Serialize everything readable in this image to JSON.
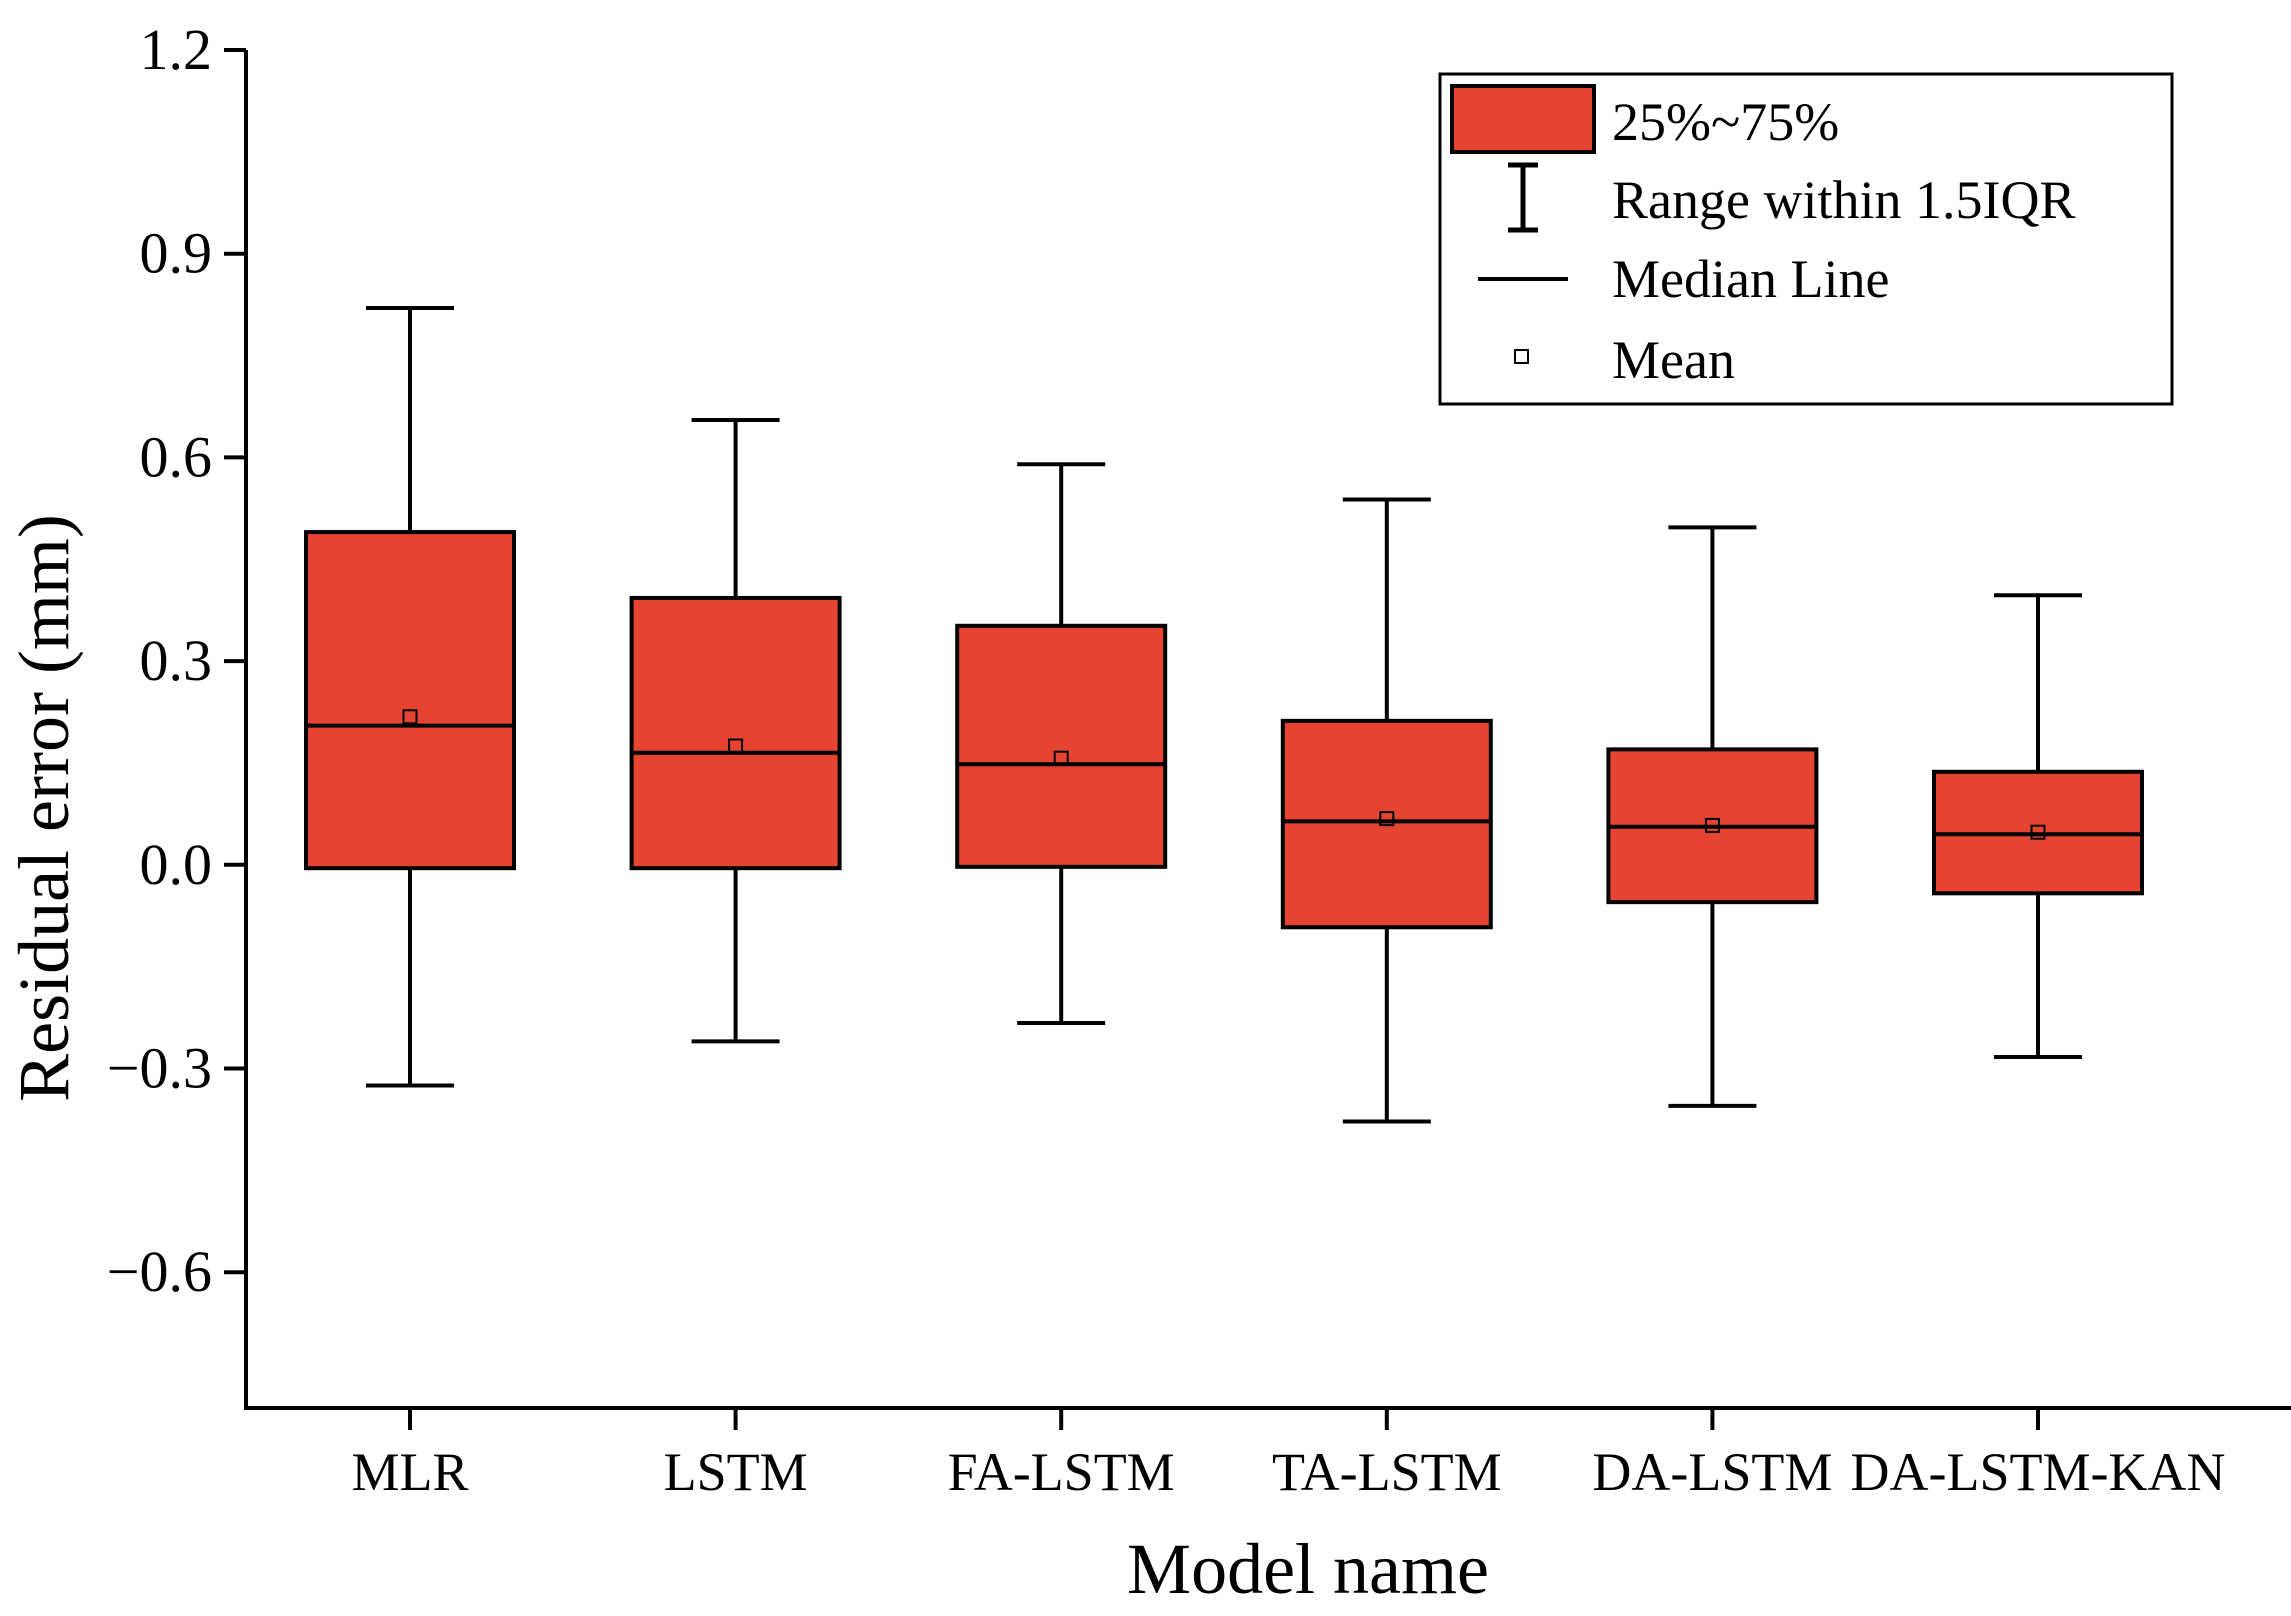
{
  "chart_data": {
    "type": "box",
    "xlabel": "Model name",
    "ylabel": "Residual error (mm)",
    "ylim": [
      -0.8,
      1.2
    ],
    "yticks": [
      -0.6,
      -0.3,
      0.0,
      0.3,
      0.6,
      0.9,
      1.2
    ],
    "ytick_labels": [
      "−0.6",
      "−0.3",
      "0.0",
      "0.3",
      "0.6",
      "0.9",
      "1.2"
    ],
    "grid": false,
    "legend_position": "top-right",
    "legend": [
      "25%~75%",
      "Range within 1.5IQR",
      "Median Line",
      "Mean"
    ],
    "box_color": "#e54530",
    "categories": [
      "MLR",
      "LSTM",
      "FA-LSTM",
      "TA-LSTM",
      "DA-LSTM",
      "DA-LSTM-KAN"
    ],
    "series": [
      {
        "name": "MLR",
        "whisker_low": -0.325,
        "q1": -0.005,
        "median": 0.205,
        "q3": 0.49,
        "whisker_high": 0.82,
        "mean": 0.218
      },
      {
        "name": "LSTM",
        "whisker_low": -0.26,
        "q1": -0.005,
        "median": 0.165,
        "q3": 0.393,
        "whisker_high": 0.655,
        "mean": 0.175
      },
      {
        "name": "FA-LSTM",
        "whisker_low": -0.233,
        "q1": -0.003,
        "median": 0.148,
        "q3": 0.352,
        "whisker_high": 0.59,
        "mean": 0.157
      },
      {
        "name": "TA-LSTM",
        "whisker_low": -0.378,
        "q1": -0.092,
        "median": 0.064,
        "q3": 0.212,
        "whisker_high": 0.538,
        "mean": 0.068
      },
      {
        "name": "DA-LSTM",
        "whisker_low": -0.355,
        "q1": -0.055,
        "median": 0.056,
        "q3": 0.17,
        "whisker_high": 0.497,
        "mean": 0.058
      },
      {
        "name": "DA-LSTM-KAN",
        "whisker_low": -0.283,
        "q1": -0.042,
        "median": 0.045,
        "q3": 0.137,
        "whisker_high": 0.397,
        "mean": 0.048
      }
    ]
  }
}
